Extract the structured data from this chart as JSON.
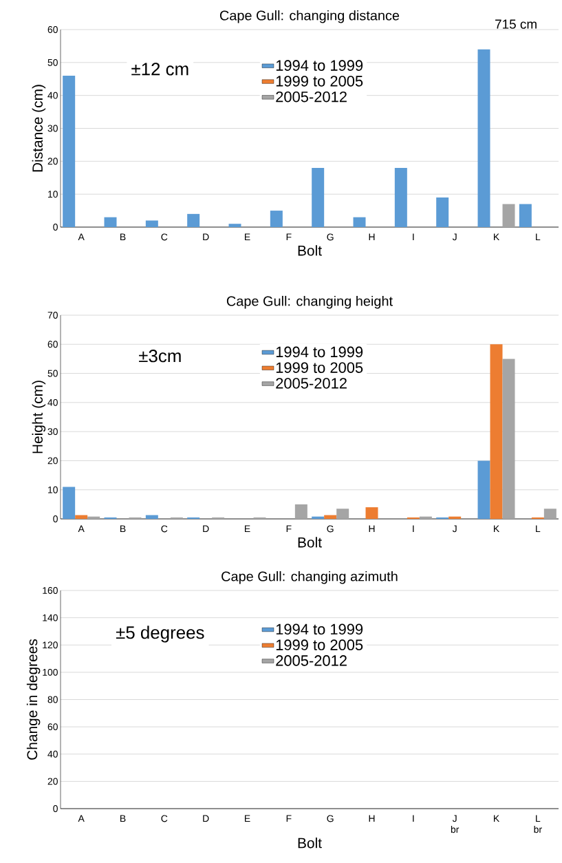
{
  "chart_data": [
    {
      "type": "bar",
      "title": "Cape Gull: changing distance",
      "xlabel": "Bolt",
      "ylabel": "Distance (cm)",
      "categories": [
        "A",
        "B",
        "C",
        "D",
        "E",
        "F",
        "G",
        "H",
        "I",
        "J",
        "K",
        "L"
      ],
      "series": [
        {
          "name": "1994 to 1999",
          "color": "#5b9bd5",
          "values": [
            46,
            3,
            2,
            4,
            1,
            5,
            18,
            3,
            18,
            9,
            54,
            7
          ]
        },
        {
          "name": "1999 to 2005",
          "color": "#ed7d31",
          "values": [
            null,
            null,
            null,
            null,
            null,
            null,
            null,
            null,
            null,
            null,
            null,
            null
          ]
        },
        {
          "name": "2005-2012",
          "color": "#a5a5a5",
          "values": [
            null,
            null,
            null,
            null,
            null,
            null,
            null,
            null,
            null,
            null,
            7,
            null
          ]
        }
      ],
      "ylim": [
        0,
        60
      ],
      "yticks": [
        0,
        10,
        20,
        30,
        40,
        50,
        60
      ],
      "grid": "y",
      "legend": "top",
      "annotations": [
        "±12 cm",
        "715 cm"
      ]
    },
    {
      "type": "bar",
      "title": "Cape Gull: changing height",
      "xlabel": "Bolt",
      "ylabel": "Height (cm)",
      "categories": [
        "A",
        "B",
        "C",
        "D",
        "E",
        "F",
        "G",
        "H",
        "I",
        "J",
        "K",
        "L"
      ],
      "series": [
        {
          "name": "1994 to 1999",
          "color": "#5b9bd5",
          "values": [
            11,
            0.5,
            1.3,
            0.5,
            null,
            null,
            0.8,
            null,
            null,
            0.5,
            20,
            null
          ]
        },
        {
          "name": "1999 to 2005",
          "color": "#ed7d31",
          "values": [
            1.3,
            null,
            null,
            null,
            null,
            null,
            1.3,
            4,
            0.5,
            0.8,
            60,
            0.5
          ]
        },
        {
          "name": "2005-2012",
          "color": "#a5a5a5",
          "values": [
            0.8,
            0.5,
            0.5,
            0.5,
            0.5,
            5,
            3.5,
            null,
            0.8,
            null,
            55,
            3.5
          ]
        }
      ],
      "ylim": [
        0,
        70
      ],
      "yticks": [
        0,
        10,
        20,
        30,
        40,
        50,
        60,
        70
      ],
      "grid": "y",
      "legend": "top",
      "annotations": [
        "±3cm"
      ]
    },
    {
      "type": "bar",
      "title": "Cape Gull: changing azimuth",
      "xlabel": "Bolt",
      "ylabel": "Change in degrees",
      "categories": [
        "A",
        "B",
        "C",
        "D",
        "E",
        "F",
        "G",
        "H",
        "I",
        "J br",
        "K",
        "L br"
      ],
      "series": [
        {
          "name": "1994 to 1999",
          "color": "#5b9bd5",
          "values": [
            null,
            null,
            null,
            null,
            null,
            null,
            null,
            null,
            null,
            null,
            null,
            null
          ]
        },
        {
          "name": "1999 to 2005",
          "color": "#ed7d31",
          "values": [
            null,
            null,
            null,
            null,
            null,
            null,
            null,
            null,
            null,
            null,
            null,
            null
          ]
        },
        {
          "name": "2005-2012",
          "color": "#a5a5a5",
          "values": [
            null,
            null,
            null,
            null,
            null,
            null,
            null,
            null,
            null,
            null,
            null,
            null
          ]
        }
      ],
      "ylim": [
        0,
        160
      ],
      "yticks": [
        0,
        20,
        40,
        60,
        80,
        100,
        120,
        140,
        160
      ],
      "grid": "y",
      "legend": "top",
      "annotations": [
        "±5 degrees"
      ]
    }
  ]
}
